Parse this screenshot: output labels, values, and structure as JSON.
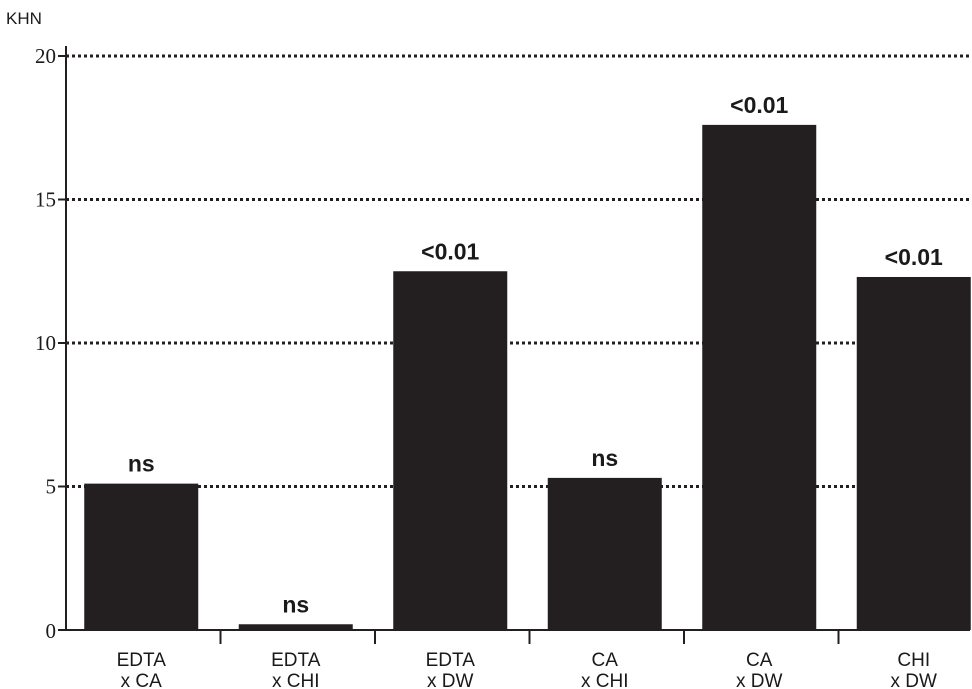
{
  "chart_data": {
    "type": "bar",
    "ylabel": "KHN",
    "xlabel": "",
    "title": "",
    "ylim": [
      0,
      20
    ],
    "yticks": [
      0,
      5,
      10,
      15,
      20
    ],
    "grid": true,
    "bar_color": "#231f20",
    "categories": [
      [
        "EDTA",
        "x CA"
      ],
      [
        "EDTA",
        "x CHI"
      ],
      [
        "EDTA",
        "x DW"
      ],
      [
        "CA",
        "x CHI"
      ],
      [
        "CA",
        "x DW"
      ],
      [
        "CHI",
        "x DW"
      ]
    ],
    "values": [
      5.1,
      0.2,
      12.5,
      5.3,
      17.6,
      12.3
    ],
    "annotations": [
      "ns",
      "ns",
      "<0.01",
      "ns",
      "<0.01",
      "<0.01"
    ]
  }
}
